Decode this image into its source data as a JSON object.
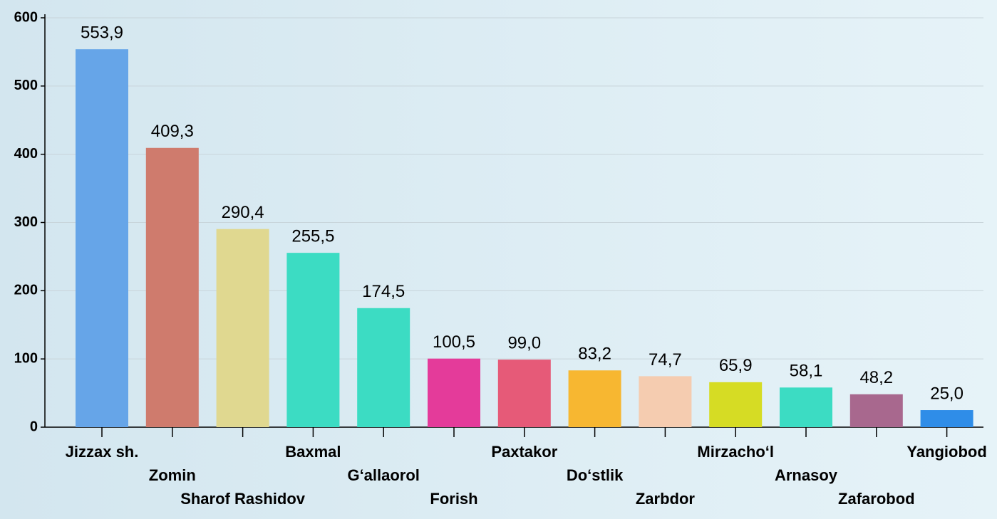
{
  "chart_data": {
    "type": "bar",
    "categories": [
      "Jizzax sh.",
      "Zomin",
      "Sharof Rashidov",
      "Baxmal",
      "G‘allaorol",
      "Forish",
      "Paxtakor",
      "Do‘stlik",
      "Zarbdor",
      "Mirzacho‘l",
      "Arnasoy",
      "Zafarobod",
      "Yangiobod"
    ],
    "values": [
      553.9,
      409.3,
      290.4,
      255.5,
      174.5,
      100.5,
      99.0,
      83.2,
      74.7,
      65.9,
      58.1,
      48.2,
      25.0
    ],
    "value_labels": [
      "553,9",
      "409,3",
      "290,4",
      "255,5",
      "174,5",
      "100,5",
      "99,0",
      "83,2",
      "74,7",
      "65,9",
      "58,1",
      "48,2",
      "25,0"
    ],
    "colors": [
      "#66a5e8",
      "#cf7b6d",
      "#e0d890",
      "#3cdcc3",
      "#3cdcc3",
      "#e43b9a",
      "#e65a78",
      "#f7b731",
      "#f5ccb0",
      "#d6dc24",
      "#3cdcc3",
      "#a8688e",
      "#2f8de8"
    ],
    "ylim": [
      0,
      600
    ],
    "yticks": [
      0,
      100,
      200,
      300,
      400,
      500,
      600
    ],
    "grid": true
  }
}
